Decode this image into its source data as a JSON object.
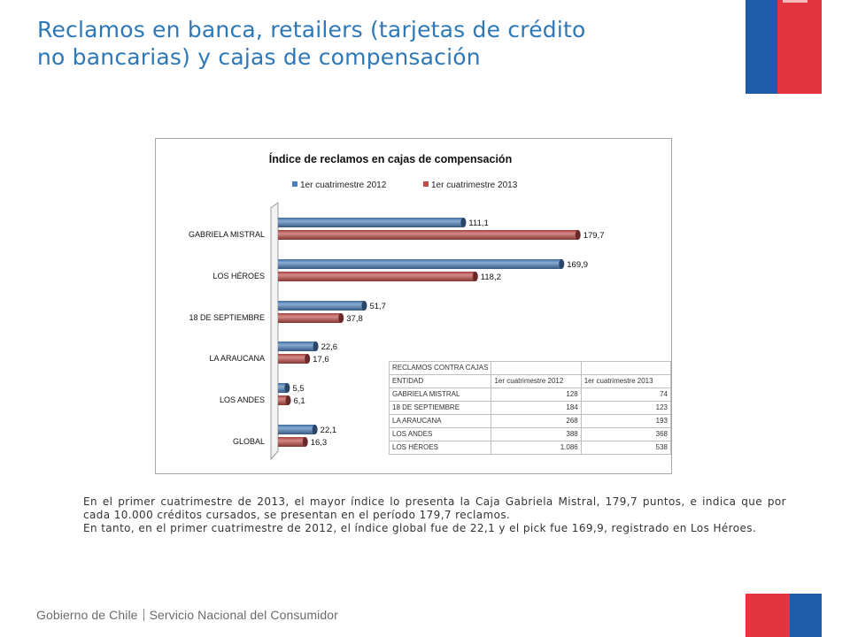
{
  "slide": {
    "title_line1": "Reclamos en banca, retailers (tarjetas de crédito",
    "title_line2": "no bancarias) y cajas de compensación",
    "paragraph1": "En el primer cuatrimestre de 2013, el mayor índice lo presenta la Caja Gabriela Mistral, 179,7 puntos, e indica que por cada 10.000 créditos cursados, se presentan en el período 179,7 reclamos.",
    "paragraph2": "En tanto, en el primer cuatrimestre de 2012, el índice global fue de 22,1 y el pick fue 169,9, registrado en Los Héroes.",
    "footer_left": "Gobierno de Chile",
    "footer_right": "Servicio Nacional del Consumidor",
    "colors": {
      "title": "#2e78b7",
      "flag_blue": "#1f5ca8",
      "flag_red": "#e4343f"
    }
  },
  "chart_data": {
    "type": "bar",
    "orientation": "horizontal",
    "title": "Índice de reclamos en cajas de compensación",
    "legend_position": "top",
    "categories": [
      "GABRIELA MISTRAL",
      "LOS HÉROES",
      "18 DE SEPTIEMBRE",
      "LA ARAUCANA",
      "LOS ANDES",
      "GLOBAL"
    ],
    "series": [
      {
        "name": "1er cuatrimestre 2012",
        "color": "#4a7ebb",
        "values": [
          111.1,
          169.9,
          51.7,
          22.6,
          5.5,
          22.1
        ],
        "labels": [
          "111,1",
          "169,9",
          "51,7",
          "22,6",
          "5,5",
          "22,1"
        ]
      },
      {
        "name": "1er cuatrimestre 2013",
        "color": "#be4b48",
        "values": [
          179.7,
          118.2,
          37.8,
          17.6,
          6.1,
          16.3
        ],
        "labels": [
          "179,7",
          "118,2",
          "37,8",
          "17,6",
          "6,1",
          "16,3"
        ]
      }
    ],
    "xlim": [
      0,
      200
    ],
    "grid": false
  },
  "table": {
    "title": "RECLAMOS CONTRA CAJAS",
    "headers": [
      "ENTIDAD",
      "1er cuatrimestre 2012",
      "1er cuatrimestre 2013"
    ],
    "rows": [
      [
        "GABRIELA MISTRAL",
        "128",
        "74"
      ],
      [
        "18 DE SEPTIEMBRE",
        "184",
        "123"
      ],
      [
        "LA ARAUCANA",
        "268",
        "193"
      ],
      [
        "LOS ANDES",
        "388",
        "368"
      ],
      [
        "LOS HÉROES",
        "1.086",
        "538"
      ]
    ]
  }
}
